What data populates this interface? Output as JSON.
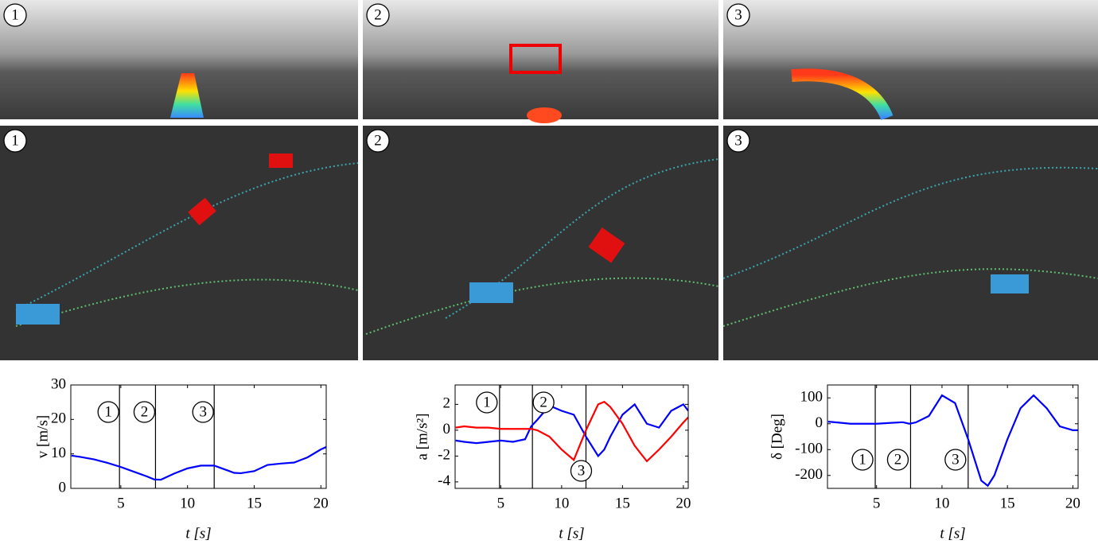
{
  "image_rows": {
    "camera": [
      "1",
      "2",
      "3"
    ],
    "lidar": [
      "1",
      "2",
      "3"
    ]
  },
  "chart_data": [
    {
      "type": "line",
      "xlabel": "t [s]",
      "ylabel": "v [m/s]",
      "x": [
        1.3,
        2,
        3,
        4,
        5,
        6,
        7,
        7.5,
        8,
        9,
        10,
        11,
        12,
        13,
        13.5,
        14,
        15,
        16,
        17,
        18,
        19,
        20,
        20.4
      ],
      "series": [
        {
          "color": "#0000ff",
          "values": [
            9.5,
            9.1,
            8.4,
            7.4,
            6.2,
            4.8,
            3.4,
            2.6,
            2.5,
            4.3,
            5.8,
            6.6,
            6.6,
            5.2,
            4.5,
            4.4,
            5.0,
            6.8,
            7.2,
            7.5,
            9.0,
            11.3,
            12
          ]
        }
      ],
      "xlim": [
        1.25,
        20.4
      ],
      "ylim": [
        0,
        30
      ],
      "xticks": [
        5,
        10,
        15,
        20
      ],
      "yticks": [
        0,
        10,
        20,
        30
      ],
      "markers": [
        {
          "value": 4.9,
          "label": "1"
        },
        {
          "value": 7.6,
          "label": "2"
        },
        {
          "value": 12.0,
          "label": "3"
        }
      ]
    },
    {
      "type": "line",
      "xlabel": "t [s]",
      "ylabel": "a [m/s²]",
      "x": [
        1.3,
        2,
        3,
        4,
        5,
        6,
        7,
        7.5,
        8,
        9,
        10,
        11,
        12,
        13,
        13.5,
        14,
        15,
        16,
        17,
        18,
        19,
        20,
        20.4
      ],
      "series": [
        {
          "color": "#0000ff",
          "values": [
            -0.8,
            -0.9,
            -1,
            -0.9,
            -0.8,
            -0.9,
            -0.7,
            0.3,
            0.8,
            1.9,
            1.5,
            1.2,
            -0.5,
            -2,
            -1.5,
            -0.5,
            1.2,
            2,
            0.5,
            0.2,
            1.5,
            2,
            1.5
          ]
        },
        {
          "color": "#ff0000",
          "values": [
            0.2,
            0.3,
            0.2,
            0.2,
            0.1,
            0.1,
            0.1,
            0.1,
            0,
            -0.5,
            -1.5,
            -2.3,
            0,
            2,
            2.2,
            1.8,
            0.5,
            -1.2,
            -2.4,
            -1.5,
            -0.5,
            0.6,
            1
          ]
        }
      ],
      "xlim": [
        1.25,
        20.4
      ],
      "ylim": [
        -4.5,
        3.5
      ],
      "xticks": [
        5,
        10,
        15,
        20
      ],
      "yticks": [
        -4,
        -2,
        0,
        2
      ],
      "markers": [
        {
          "value": 4.9,
          "label": "1"
        },
        {
          "value": 7.6,
          "label": "2"
        },
        {
          "value": 12.0,
          "label": "3"
        }
      ]
    },
    {
      "type": "line",
      "xlabel": "t [s]",
      "ylabel": "δ [Deg]",
      "x": [
        1.3,
        2,
        3,
        4,
        5,
        6,
        7,
        7.5,
        8,
        9,
        10,
        11,
        12,
        13,
        13.5,
        14,
        15,
        16,
        17,
        18,
        19,
        20,
        20.4
      ],
      "series": [
        {
          "color": "#0000ff",
          "values": [
            8,
            5,
            0,
            0,
            0,
            3,
            6,
            0,
            5,
            30,
            110,
            80,
            -60,
            -220,
            -240,
            -200,
            -60,
            60,
            110,
            60,
            -10,
            -25,
            -25
          ]
        }
      ],
      "xlim": [
        1.25,
        20.4
      ],
      "ylim": [
        -250,
        150
      ],
      "xticks": [
        5,
        10,
        15,
        20
      ],
      "yticks": [
        -200,
        -100,
        0,
        100
      ],
      "markers": [
        {
          "value": 4.9,
          "label": "1"
        },
        {
          "value": 7.6,
          "label": "2"
        },
        {
          "value": 12.0,
          "label": "3"
        }
      ]
    }
  ]
}
